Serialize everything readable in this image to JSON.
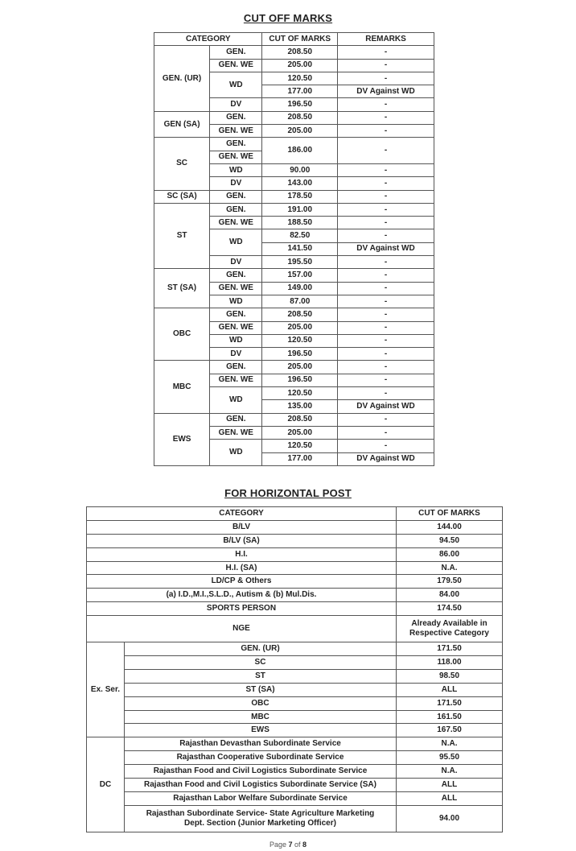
{
  "cutoff": {
    "title": "CUT  OFF  MARKS",
    "headers": {
      "category": "CATEGORY",
      "marks": "CUT OF MARKS",
      "remarks": "REMARKS"
    },
    "rows": [
      [
        "GEN. (UR)",
        "GEN.",
        "208.50",
        "-"
      ],
      [
        null,
        "GEN. WE",
        "205.00",
        "-"
      ],
      [
        null,
        "WD",
        "120.50",
        "-"
      ],
      [
        null,
        null,
        "177.00",
        "DV Against WD"
      ],
      [
        null,
        "DV",
        "196.50",
        "-"
      ],
      [
        "GEN (SA)",
        "GEN.",
        "208.50",
        "-"
      ],
      [
        null,
        "GEN. WE",
        "205.00",
        "-"
      ],
      [
        "SC",
        "GEN.",
        "186.00",
        "-"
      ],
      [
        null,
        "GEN. WE",
        null,
        null
      ],
      [
        null,
        "WD",
        "90.00",
        "-"
      ],
      [
        null,
        "DV",
        "143.00",
        "-"
      ],
      [
        "SC (SA)",
        "GEN.",
        "178.50",
        "-"
      ],
      [
        "ST",
        "GEN.",
        "191.00",
        "-"
      ],
      [
        null,
        "GEN. WE",
        "188.50",
        "-"
      ],
      [
        null,
        "WD",
        "82.50",
        "-"
      ],
      [
        null,
        null,
        "141.50",
        "DV Against WD"
      ],
      [
        null,
        "DV",
        "195.50",
        "-"
      ],
      [
        "ST (SA)",
        "GEN.",
        "157.00",
        "-"
      ],
      [
        null,
        "GEN. WE",
        "149.00",
        "-"
      ],
      [
        null,
        "WD",
        "87.00",
        "-"
      ],
      [
        "OBC",
        "GEN.",
        "208.50",
        "-"
      ],
      [
        null,
        "GEN. WE",
        "205.00",
        "-"
      ],
      [
        null,
        "WD",
        "120.50",
        "-"
      ],
      [
        null,
        "DV",
        "196.50",
        "-"
      ],
      [
        "MBC",
        "GEN.",
        "205.00",
        "-"
      ],
      [
        null,
        "GEN. WE",
        "196.50",
        "-"
      ],
      [
        null,
        "WD",
        "120.50",
        "-"
      ],
      [
        null,
        null,
        "135.00",
        "DV Against WD"
      ],
      [
        "EWS",
        "GEN.",
        "208.50",
        "-"
      ],
      [
        null,
        "GEN. WE",
        "205.00",
        "-"
      ],
      [
        null,
        "WD",
        "120.50",
        "-"
      ],
      [
        null,
        null,
        "177.00",
        "DV Against WD"
      ]
    ]
  },
  "horizontal": {
    "title": "FOR HORIZONTAL POST",
    "headers": {
      "category": "CATEGORY",
      "marks": "CUT OF MARKS"
    },
    "rows": [
      {
        "category": "B/LV",
        "marks": "144.00"
      },
      {
        "category": "B/LV (SA)",
        "marks": "94.50"
      },
      {
        "category": "H.I.",
        "marks": "86.00"
      },
      {
        "category": "H.I. (SA)",
        "marks": "N.A."
      },
      {
        "category": "LD/CP & Others",
        "marks": "179.50"
      },
      {
        "category": "(a) I.D.,M.I.,S.L.D., Autism & (b) Mul.Dis.",
        "marks": "84.00"
      },
      {
        "category": "SPORTS PERSON",
        "marks": "174.50"
      },
      {
        "category": "NGE",
        "marks": "Already Available in Respective Category"
      },
      {
        "group": "Ex. Ser.",
        "category": "GEN. (UR)",
        "marks": "171.50"
      },
      {
        "group": null,
        "category": "SC",
        "marks": "118.00"
      },
      {
        "group": null,
        "category": "ST",
        "marks": "98.50"
      },
      {
        "group": null,
        "category": "ST (SA)",
        "marks": "ALL"
      },
      {
        "group": null,
        "category": "OBC",
        "marks": "171.50"
      },
      {
        "group": null,
        "category": "MBC",
        "marks": "161.50"
      },
      {
        "group": null,
        "category": "EWS",
        "marks": "167.50"
      },
      {
        "group": "DC",
        "category": "Rajasthan Devasthan Subordinate Service",
        "marks": "N.A."
      },
      {
        "group": null,
        "category": "Rajasthan Cooperative Subordinate Service",
        "marks": "95.50"
      },
      {
        "group": null,
        "category": "Rajasthan Food and Civil Logistics Subordinate Service",
        "marks": "N.A."
      },
      {
        "group": null,
        "category": "Rajasthan Food and Civil Logistics Subordinate Service (SA)",
        "marks": "ALL"
      },
      {
        "group": null,
        "category": "Rajasthan Labor Welfare Subordinate Service",
        "marks": "ALL"
      },
      {
        "group": null,
        "category": "Rajasthan Subordinate Service- State Agriculture Marketing Dept. Section (Junior Marketing Officer)",
        "marks": "94.00"
      }
    ]
  },
  "footer": {
    "prefix": "Page",
    "page": "7",
    "of": "of",
    "total": "8"
  }
}
